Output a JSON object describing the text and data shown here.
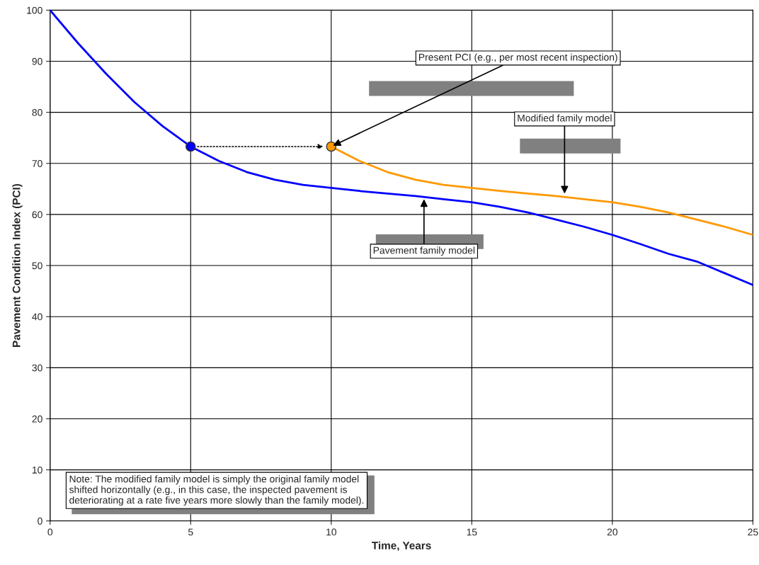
{
  "chart_data": {
    "type": "line",
    "xlabel": "Time, Years",
    "ylabel": "Pavement Condition Index (PCI)",
    "xlim": [
      0,
      25
    ],
    "ylim": [
      0,
      100
    ],
    "xticks": [
      0,
      5,
      10,
      15,
      20,
      25
    ],
    "yticks": [
      0,
      10,
      20,
      30,
      40,
      50,
      60,
      70,
      80,
      90,
      100
    ],
    "grid": true,
    "series": [
      {
        "color": "#0000ff",
        "x": [
          0,
          1,
          2,
          3,
          4,
          5,
          6,
          7,
          8,
          9,
          10,
          11,
          12,
          13,
          14,
          15,
          16,
          17,
          18,
          19,
          20,
          21,
          22,
          23,
          24,
          25
        ],
        "values": [
          100,
          93.5,
          87.5,
          82,
          77.3,
          73.3,
          70.5,
          68.3,
          66.8,
          65.8,
          65.2,
          64.6,
          64.1,
          63.6,
          63.0,
          62.4,
          61.5,
          60.4,
          59.0,
          57.6,
          56.0,
          54.2,
          52.3,
          50.8,
          48.5,
          46.2
        ]
      },
      {
        "color": "#ff9900",
        "x": [
          10,
          11,
          12,
          13,
          14,
          15,
          16,
          17,
          18,
          19,
          20,
          21,
          22,
          23,
          24,
          25
        ],
        "values": [
          73.3,
          70.5,
          68.3,
          66.8,
          65.8,
          65.2,
          64.6,
          64.1,
          63.6,
          63.0,
          62.4,
          61.5,
          60.4,
          59.0,
          57.6,
          56.0
        ]
      },
      {
        "type": "scatter",
        "marker": "circle",
        "color": "#0000ff",
        "x": [
          5
        ],
        "values": [
          73.3
        ]
      },
      {
        "type": "scatter",
        "marker": "circle",
        "color": "#ff9900",
        "x": [
          10
        ],
        "values": [
          73.3
        ]
      }
    ],
    "annotations": [
      {
        "text": "Present PCI (e.g., per most recent inspection)",
        "x": 10,
        "y": 73.3
      },
      {
        "text": "Modified family model",
        "x": 18.3,
        "y": 63.7
      },
      {
        "text": "Pavement family model",
        "x": 13.3,
        "y": 63.4
      },
      "Note: The modified family model is simply the original family model\nshifted horizontally (e.g., in this case, the inspected pavement is\ndeteriorating at a rate five years more slowly than the family model)."
    ]
  }
}
